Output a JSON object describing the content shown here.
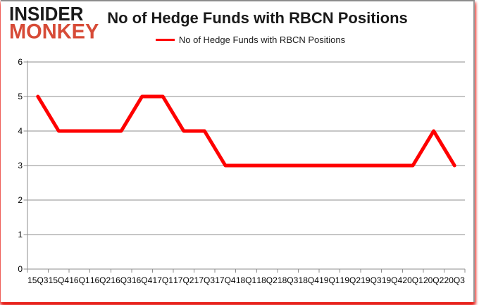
{
  "logo": {
    "line1": "INSIDER",
    "line2": "MONKEY",
    "color_top": "#1a1a1a",
    "color_bottom": "#d74b37"
  },
  "header": {
    "title": "No of Hedge Funds with RBCN Positions"
  },
  "legend": {
    "label": "No of Hedge Funds with RBCN Positions",
    "marker_color": "#fe0000"
  },
  "chart_data": {
    "type": "line",
    "title": "No of Hedge Funds with RBCN Positions",
    "categories": [
      "15Q3",
      "15Q4",
      "16Q1",
      "16Q2",
      "16Q3",
      "16Q4",
      "17Q1",
      "17Q2",
      "17Q3",
      "17Q4",
      "18Q1",
      "18Q2",
      "18Q3",
      "18Q4",
      "19Q1",
      "19Q2",
      "19Q3",
      "19Q4",
      "20Q1",
      "20Q2",
      "20Q3"
    ],
    "series": [
      {
        "name": "No of Hedge Funds with RBCN Positions",
        "color": "#fe0000",
        "values": [
          5,
          4,
          4,
          4,
          4,
          5,
          5,
          4,
          4,
          3,
          3,
          3,
          3,
          3,
          3,
          3,
          3,
          3,
          3,
          4,
          3
        ]
      }
    ],
    "xlabel": "",
    "ylabel": "",
    "ylim": [
      0,
      6
    ],
    "yticks": [
      0,
      1,
      2,
      3,
      4,
      5,
      6
    ],
    "grid": true,
    "legend_position": "top",
    "grid_color": "#8e8e8e",
    "axis_color": "#8e8e8e",
    "tick_label_color": "#000000"
  }
}
